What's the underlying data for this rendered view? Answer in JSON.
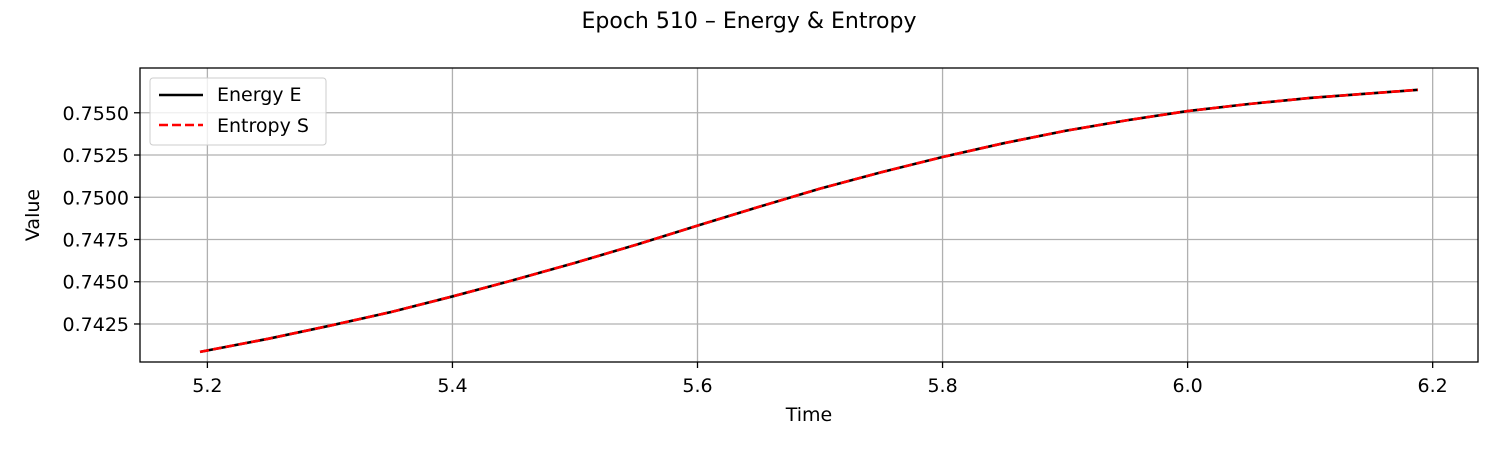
{
  "chart_data": {
    "type": "line",
    "title": "Epoch 510 – Energy & Entropy",
    "xlabel": "Time",
    "ylabel": "Value",
    "xlim": [
      5.145,
      6.237
    ],
    "ylim": [
      0.74025,
      0.75765
    ],
    "xticks": [
      5.2,
      5.4,
      5.6,
      5.8,
      6.0,
      6.2
    ],
    "xtick_labels": [
      "5.2",
      "5.4",
      "5.6",
      "5.8",
      "6.0",
      "6.2"
    ],
    "yticks": [
      0.7425,
      0.745,
      0.7475,
      0.75,
      0.7525,
      0.755
    ],
    "ytick_labels": [
      "0.7425",
      "0.7450",
      "0.7475",
      "0.7500",
      "0.7525",
      "0.7550"
    ],
    "grid": true,
    "legend_position": "upper left",
    "series": [
      {
        "name": "Energy E",
        "color": "#000000",
        "style": "solid",
        "x": [
          5.194,
          5.25,
          5.3,
          5.35,
          5.4,
          5.45,
          5.5,
          5.55,
          5.6,
          5.65,
          5.7,
          5.75,
          5.8,
          5.85,
          5.9,
          5.95,
          6.0,
          6.05,
          6.1,
          6.15,
          6.188
        ],
        "y": [
          0.74085,
          0.74163,
          0.7424,
          0.74321,
          0.74413,
          0.7451,
          0.74612,
          0.74719,
          0.74832,
          0.74943,
          0.75051,
          0.75148,
          0.75238,
          0.7532,
          0.75393,
          0.75455,
          0.7551,
          0.75552,
          0.75588,
          0.75615,
          0.75636
        ]
      },
      {
        "name": "Entropy S",
        "color": "#ff0000",
        "style": "dashed",
        "x": [
          5.194,
          5.25,
          5.3,
          5.35,
          5.4,
          5.45,
          5.5,
          5.55,
          5.6,
          5.65,
          5.7,
          5.75,
          5.8,
          5.85,
          5.9,
          5.95,
          6.0,
          6.05,
          6.1,
          6.15,
          6.188
        ],
        "y": [
          0.74085,
          0.74163,
          0.7424,
          0.74321,
          0.74413,
          0.7451,
          0.74612,
          0.74719,
          0.74832,
          0.74943,
          0.75051,
          0.75148,
          0.75238,
          0.7532,
          0.75393,
          0.75455,
          0.7551,
          0.75552,
          0.75588,
          0.75615,
          0.75636
        ]
      }
    ]
  }
}
